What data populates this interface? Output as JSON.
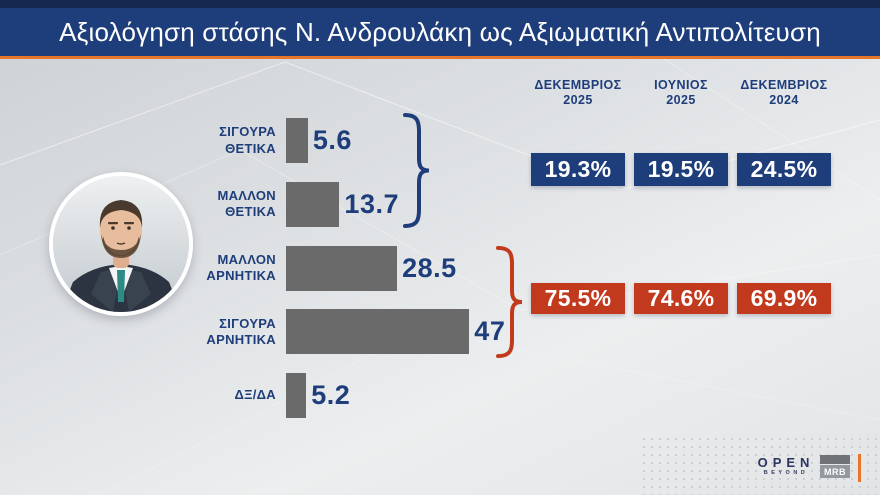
{
  "title": "Αξιολόγηση στάσης Ν. Ανδρουλάκη ως Αξιωματική Αντιπολίτευση",
  "colors": {
    "top_strip": "#15284d",
    "title_bar": "#1e3d7b",
    "orange_accent": "#e8762a",
    "navy_text": "#1e3d7b",
    "bar_gray": "#6a6a6a",
    "positive_box": "#1e3d7b",
    "negative_box": "#c23a1d",
    "background_light": "#e5e7e9"
  },
  "chart_data": {
    "type": "bar",
    "orientation": "horizontal",
    "title": "Αξιολόγηση στάσης Ν. Ανδρουλάκη ως Αξιωματική Αντιπολίτευση",
    "categories": [
      "ΣΙΓΟΥΡΑ ΘΕΤΙΚΑ",
      "ΜΑΛΛΟΝ ΘΕΤΙΚΑ",
      "ΜΑΛΛΟΝ ΑΡΝΗΤΙΚΑ",
      "ΣΙΓΟΥΡΑ ΑΡΝΗΤΙΚΑ",
      "ΔΞ/ΔΑ"
    ],
    "values": [
      5.6,
      13.7,
      28.5,
      47,
      5.2
    ],
    "xlim": [
      0,
      50
    ],
    "grid": false,
    "bar_color": "#6a6a6a",
    "value_label_color": "#1e3d7b",
    "summary": {
      "period_headers": [
        [
          "ΔΕΚΕΜΒΡΙΟΣ",
          "2025"
        ],
        [
          "ΙΟΥΝΙΟΣ",
          "2025"
        ],
        [
          "ΔΕΚΕΜΒΡΙΟΣ",
          "2024"
        ]
      ],
      "positive": {
        "covers": [
          "ΣΙΓΟΥΡΑ ΘΕΤΙΚΑ",
          "ΜΑΛΛΟΝ ΘΕΤΙΚΑ"
        ],
        "values": [
          "19.3%",
          "19.5%",
          "24.5%"
        ],
        "color": "#1e3d7b"
      },
      "negative": {
        "covers": [
          "ΜΑΛΛΟΝ ΑΡΝΗΤΙΚΑ",
          "ΣΙΓΟΥΡΑ ΑΡΝΗΤΙΚΑ"
        ],
        "values": [
          "75.5%",
          "74.6%",
          "69.9%"
        ],
        "color": "#c23a1d"
      }
    }
  },
  "logos": {
    "channel": "OPEN",
    "channel_sub": "BEYOND",
    "pollster": "MRB"
  }
}
